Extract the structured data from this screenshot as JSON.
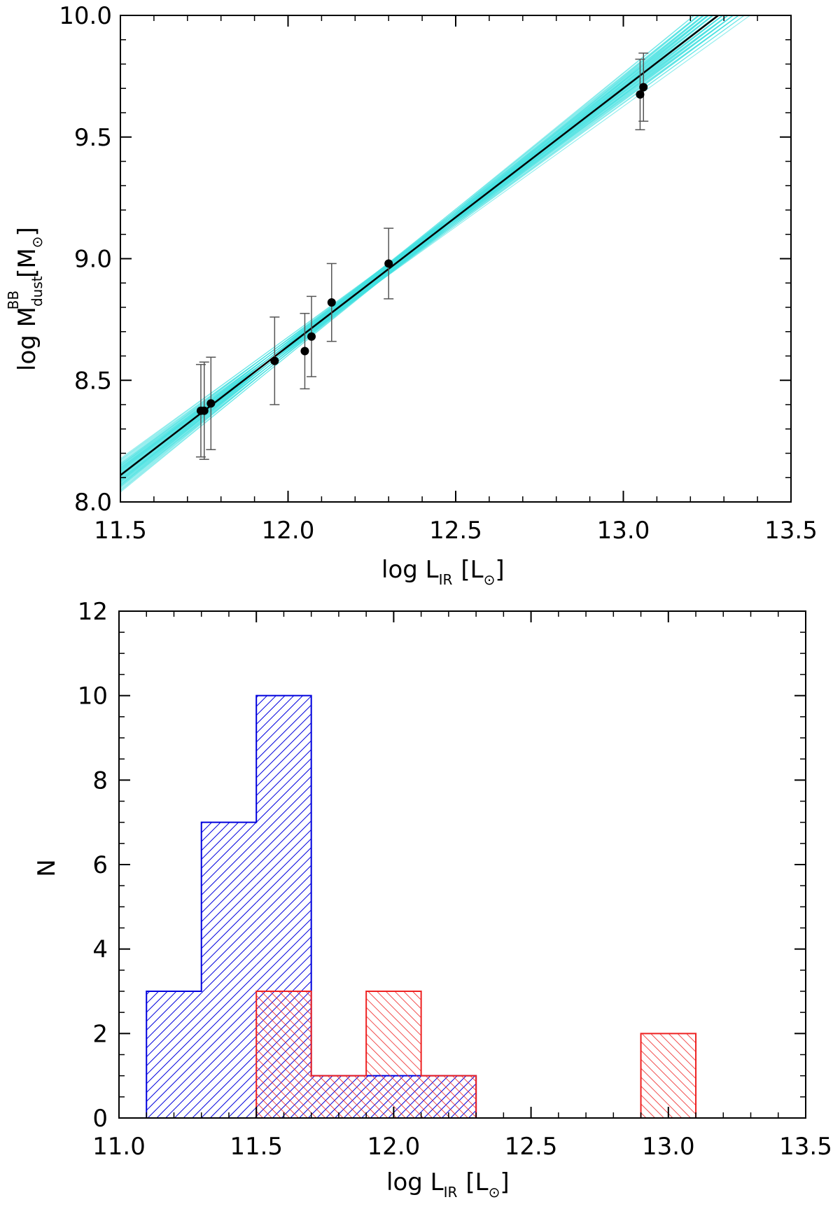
{
  "chart_data": [
    {
      "type": "scatter",
      "xlabel": "log L",
      "xlabel_sub": "IR",
      "xlabel_unit_open": "[L",
      "xlabel_unit_sub": "⊙",
      "xlabel_unit_close": "]",
      "ylabel": "log M",
      "ylabel_sub": "dust",
      "ylabel_sup": "BB",
      "ylabel_unit_open": "[M",
      "ylabel_unit_sub": "⊙",
      "ylabel_unit_close": "]",
      "xlim": [
        11.5,
        13.5
      ],
      "ylim": [
        8.0,
        10.0
      ],
      "xticks": [
        "11.5",
        "12.0",
        "12.5",
        "13.0",
        "13.5"
      ],
      "yticks": [
        "8.0",
        "8.5",
        "9.0",
        "9.5",
        "10.0"
      ],
      "points": [
        {
          "x": 11.74,
          "y": 8.375,
          "err": 0.19
        },
        {
          "x": 11.75,
          "y": 8.375,
          "err": 0.2
        },
        {
          "x": 11.77,
          "y": 8.405,
          "err": 0.19
        },
        {
          "x": 11.96,
          "y": 8.58,
          "err": 0.18
        },
        {
          "x": 12.05,
          "y": 8.62,
          "err": 0.155
        },
        {
          "x": 12.07,
          "y": 8.68,
          "err": 0.165
        },
        {
          "x": 12.13,
          "y": 8.82,
          "err": 0.16
        },
        {
          "x": 12.3,
          "y": 8.98,
          "err": 0.145
        },
        {
          "x": 13.05,
          "y": 9.675,
          "err": 0.145
        },
        {
          "x": 13.06,
          "y": 9.705,
          "err": 0.14
        }
      ],
      "fit": {
        "x0": 11.5,
        "y0": 8.11,
        "slope": 1.06
      },
      "fit_color": "#000000",
      "band_color": "#40e0e0",
      "point_color": "#000000",
      "errorbar_color": "#555555"
    },
    {
      "type": "histogram",
      "xlabel": "log L",
      "xlabel_sub": "IR",
      "xlabel_unit_open": "[L",
      "xlabel_unit_sub": "⊙",
      "xlabel_unit_close": "]",
      "ylabel": "N",
      "xlim": [
        11.0,
        13.5
      ],
      "ylim": [
        0,
        12
      ],
      "xticks": [
        "11.0",
        "11.5",
        "12.0",
        "12.5",
        "13.0",
        "13.5"
      ],
      "yticks": [
        "0",
        "2",
        "4",
        "6",
        "8",
        "10",
        "12"
      ],
      "bin_edges": [
        11.1,
        11.3,
        11.5,
        11.7,
        11.9,
        12.1,
        12.3,
        12.5,
        12.7,
        12.9,
        13.1
      ],
      "series": [
        {
          "color": "#0000dd",
          "counts": [
            3,
            7,
            10,
            1,
            1,
            1,
            0,
            0,
            0,
            0
          ]
        },
        {
          "color": "#ee2222",
          "counts": [
            0,
            0,
            3,
            1,
            3,
            1,
            0,
            0,
            0,
            2
          ]
        }
      ]
    }
  ]
}
